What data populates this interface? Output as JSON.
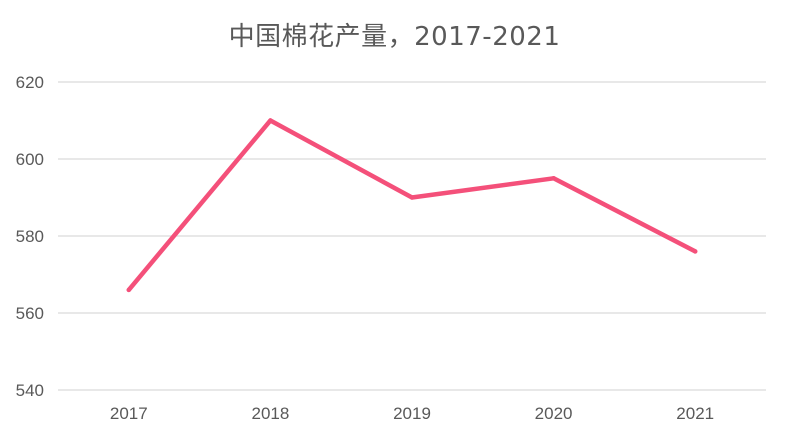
{
  "chart_data": {
    "type": "line",
    "title": "中国棉花产量，2017-2021",
    "xlabel": "",
    "ylabel": "",
    "categories": [
      "2017",
      "2018",
      "2019",
      "2020",
      "2021"
    ],
    "series": [
      {
        "values": [
          566,
          610,
          590,
          595,
          576
        ],
        "color": "#f4507a"
      }
    ],
    "ylim": [
      540,
      620
    ],
    "yticks": [
      540,
      560,
      580,
      600,
      620
    ],
    "grid": true,
    "legend": "none"
  }
}
